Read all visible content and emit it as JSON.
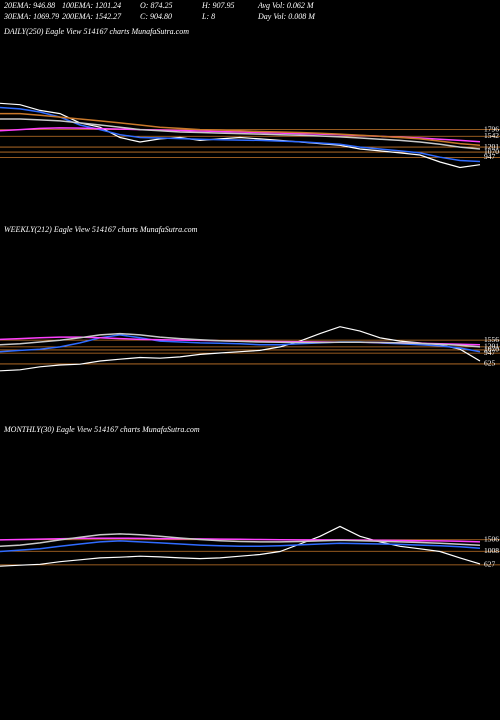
{
  "header": {
    "stats": [
      [
        "20EMA: 946.88",
        "100EMA: 1201.24",
        "O: 874.25",
        "H: 907.95",
        "Avg Vol: 0.062  M"
      ],
      [
        "30EMA: 1069.79",
        "200EMA: 1542.27",
        "C: 904.80",
        "L: 8",
        "Day Vol: 0.008  M"
      ]
    ]
  },
  "chart_data": [
    {
      "type": "line",
      "title": "DAILY(250) Eagle   View  514167 charts MunafaSutra.com",
      "log_scale": true,
      "ylim": [
        500,
        4000
      ],
      "yticks": [
        1796,
        1542,
        1201,
        1070,
        947
      ],
      "level_color": "#c8782a",
      "series": [
        {
          "color": "#ffffff",
          "values": [
            3300,
            3200,
            2800,
            2600,
            2100,
            1900,
            1500,
            1350,
            1450,
            1500,
            1400,
            1450,
            1500,
            1450,
            1400,
            1350,
            1300,
            1250,
            1150,
            1100,
            1050,
            1000,
            850,
            750,
            800
          ]
        },
        {
          "color": "#2f6bff",
          "values": [
            3000,
            2900,
            2700,
            2400,
            2000,
            1800,
            1600,
            1500,
            1480,
            1460,
            1440,
            1420,
            1410,
            1400,
            1380,
            1360,
            1320,
            1280,
            1200,
            1150,
            1100,
            1050,
            950,
            880,
            860
          ]
        },
        {
          "color": "#ff40ff",
          "values": [
            1750,
            1800,
            1850,
            1870,
            1860,
            1840,
            1820,
            1800,
            1780,
            1760,
            1740,
            1720,
            1700,
            1680,
            1660,
            1640,
            1620,
            1600,
            1570,
            1540,
            1510,
            1480,
            1440,
            1400,
            1360
          ]
        },
        {
          "color": "#c8c8c8",
          "values": [
            2300,
            2300,
            2250,
            2200,
            2100,
            2000,
            1900,
            1800,
            1750,
            1700,
            1680,
            1660,
            1640,
            1620,
            1600,
            1580,
            1550,
            1520,
            1480,
            1440,
            1400,
            1350,
            1280,
            1200,
            1150
          ]
        },
        {
          "color": "#c8782a",
          "values": [
            2600,
            2600,
            2500,
            2400,
            2300,
            2200,
            2100,
            2000,
            1900,
            1850,
            1800,
            1780,
            1750,
            1720,
            1700,
            1680,
            1650,
            1620,
            1580,
            1540,
            1500,
            1450,
            1380,
            1300,
            1250
          ]
        }
      ]
    },
    {
      "type": "line",
      "title": "WEEKLY(212) Eagle   View  514167 charts MunafaSutra.com",
      "log_scale": true,
      "ylim": [
        400,
        3000
      ],
      "yticks": [
        1556,
        1201,
        1070,
        947,
        625
      ],
      "level_color": "#c8782a",
      "series": [
        {
          "color": "#ffffff",
          "values": [
            480,
            500,
            560,
            600,
            620,
            700,
            750,
            800,
            780,
            820,
            900,
            950,
            1000,
            1050,
            1200,
            1500,
            2000,
            2600,
            2200,
            1700,
            1500,
            1400,
            1300,
            1100,
            700
          ]
        },
        {
          "color": "#2f6bff",
          "values": [
            1000,
            1050,
            1100,
            1200,
            1400,
            1700,
            1900,
            1700,
            1500,
            1450,
            1400,
            1380,
            1350,
            1300,
            1300,
            1350,
            1400,
            1450,
            1450,
            1400,
            1350,
            1300,
            1250,
            1150,
            1000
          ]
        },
        {
          "color": "#ff40ff",
          "values": [
            1600,
            1650,
            1700,
            1750,
            1750,
            1700,
            1650,
            1600,
            1580,
            1560,
            1540,
            1520,
            1500,
            1480,
            1470,
            1460,
            1450,
            1440,
            1430,
            1420,
            1400,
            1380,
            1360,
            1330,
            1300
          ]
        },
        {
          "color": "#c8c8c8",
          "values": [
            1300,
            1350,
            1450,
            1550,
            1700,
            1900,
            2000,
            1900,
            1750,
            1650,
            1580,
            1520,
            1480,
            1450,
            1430,
            1420,
            1420,
            1430,
            1430,
            1420,
            1400,
            1370,
            1330,
            1280,
            1200
          ]
        }
      ]
    },
    {
      "type": "line",
      "title": "MONTHLY(30) Eagle   View  514167 charts MunafaSutra.com",
      "log_scale": true,
      "ylim": [
        500,
        3000
      ],
      "yticks": [
        1506,
        1008,
        627
      ],
      "level_color": "#c8782a",
      "series": [
        {
          "color": "#ffffff",
          "values": [
            600,
            620,
            640,
            700,
            750,
            800,
            820,
            850,
            830,
            800,
            780,
            800,
            850,
            900,
            1000,
            1300,
            1700,
            2400,
            1700,
            1400,
            1200,
            1100,
            1000,
            800,
            650
          ]
        },
        {
          "color": "#2f6bff",
          "values": [
            1000,
            1050,
            1100,
            1200,
            1300,
            1400,
            1450,
            1400,
            1350,
            1300,
            1250,
            1220,
            1200,
            1200,
            1220,
            1260,
            1300,
            1330,
            1320,
            1300,
            1280,
            1250,
            1220,
            1180,
            1120
          ]
        },
        {
          "color": "#ff40ff",
          "values": [
            1500,
            1520,
            1540,
            1560,
            1580,
            1590,
            1590,
            1580,
            1570,
            1560,
            1550,
            1540,
            1530,
            1520,
            1510,
            1500,
            1500,
            1500,
            1490,
            1480,
            1470,
            1460,
            1450,
            1430,
            1400
          ]
        },
        {
          "color": "#c8c8c8",
          "values": [
            1200,
            1250,
            1350,
            1500,
            1650,
            1800,
            1850,
            1800,
            1700,
            1600,
            1520,
            1460,
            1420,
            1400,
            1400,
            1420,
            1450,
            1480,
            1460,
            1430,
            1400,
            1370,
            1330,
            1290,
            1240
          ]
        }
      ]
    }
  ]
}
